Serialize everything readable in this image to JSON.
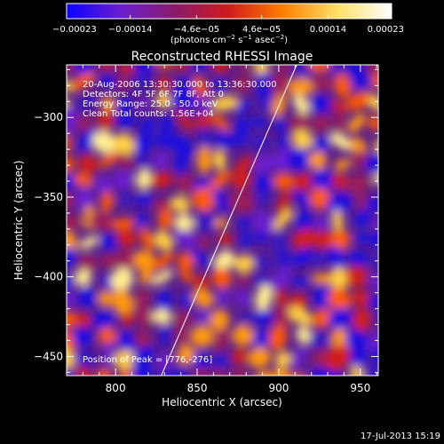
{
  "chart_data": {
    "type": "heatmap",
    "title": "Reconstructed RHESSI Image",
    "xlabel": "Heliocentric X (arcsec)",
    "ylabel": "Heliocentric Y (arcsec)",
    "xlim": [
      770,
      961
    ],
    "ylim": [
      -462,
      -267
    ],
    "x_ticks": [
      800,
      850,
      900,
      950
    ],
    "y_ticks": [
      -300,
      -350,
      -400,
      -450
    ],
    "x_tick_labels": [
      "800",
      "850",
      "900",
      "950"
    ],
    "y_tick_labels": [
      "−300",
      "−350",
      "−400",
      "−450"
    ],
    "colorbar": {
      "min": -0.00023,
      "max": 0.00023,
      "ticks": [
        -0.00023,
        -0.00014,
        -4.6e-05,
        4.6e-05,
        0.00014,
        0.00023
      ],
      "tick_labels": [
        "−0.00023",
        "−0.00014",
        "−4.6e−05",
        "4.6e−05",
        "0.00014",
        "0.00023"
      ],
      "label_prefix": "(photons cm",
      "label_sup1": "−2",
      "label_mid1": " s",
      "label_sup2": "−1",
      "label_mid2": " asec",
      "label_sup3": "−2",
      "label_suffix": ")",
      "colors": [
        "#0a00ff",
        "#6a1fd0",
        "#8a1a6a",
        "#d21a1a",
        "#ff8000",
        "#ffe066",
        "#ffffff"
      ]
    },
    "info_lines": [
      "20-Aug-2006 13:30:30.000 to 13:36:30.000",
      "Detectors: 4F 5F 6F 7F 8F, Att 0",
      "Energy Range: 25.0 - 50.0 keV",
      "Clean    Total counts: 1.56E+04"
    ],
    "peak_label": "Position of Peak = [776,-276]",
    "peak": [
      776,
      -276
    ],
    "limb_line": [
      [
        828,
        -462
      ],
      [
        911,
        -267
      ]
    ],
    "grid": false
  },
  "timestamp": "17-Jul-2013 15:19"
}
